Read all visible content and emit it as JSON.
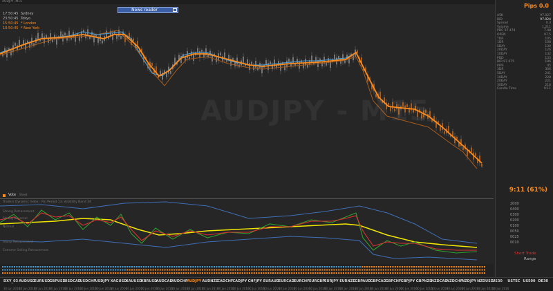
{
  "window": {
    "title": "AUDJPY, M15"
  },
  "news_reader": {
    "label": "News reader"
  },
  "sessions": [
    {
      "time": "17:50:45",
      "name": "Sydney",
      "color": "#bdbdbd"
    },
    {
      "time": "23:50:45",
      "name": "Tokyo",
      "color": "#bdbdbd"
    },
    {
      "time": "15:50:45",
      "name": "* London",
      "color": "#ff8c1a"
    },
    {
      "time": "10:50:45",
      "name": "* New York",
      "color": "#ff8c1a"
    }
  ],
  "watermark": "AUDJPY - M15",
  "stats": {
    "pips": "Pips 0.0",
    "rows": [
      {
        "label": "ASK",
        "value": "97.027"
      },
      {
        "label": "BID",
        "value": "97.024"
      },
      {
        "label": "Spread",
        "value": "0.3"
      },
      {
        "label": "Volume",
        "value": "1,211"
      },
      {
        "label": "PDC 97.474",
        "value": "7.48"
      },
      {
        "label": "OPEN",
        "value": "97.5"
      },
      {
        "label": "TDR",
        "value": "105"
      },
      {
        "label": "1DR",
        "value": "108"
      },
      {
        "label": "5DAY",
        "value": "130"
      },
      {
        "label": "20DAY",
        "value": "126"
      },
      {
        "label": "10DAY",
        "value": "132"
      },
      {
        "label": "PDD",
        "value": "133"
      },
      {
        "label": "BID 97.075",
        "value": "186"
      },
      {
        "label": "PIPS",
        "value": "45"
      },
      {
        "label": "3DR",
        "value": "306"
      },
      {
        "label": "5DAY",
        "value": "241"
      },
      {
        "label": "10DAY",
        "value": "228"
      },
      {
        "label": "20DAY",
        "value": "221"
      },
      {
        "label": "30DAY",
        "value": "218"
      },
      {
        "label": "Candle Time",
        "value": "9:11"
      }
    ]
  },
  "countdown": "9:11 (61%)",
  "vote": {
    "label": "Vote",
    "sub": "Sheet"
  },
  "indicator": {
    "title": "Traders Dynamic Index - Rsi Period 13, Volatility Band 34",
    "zones": [
      "Strong Retracement",
      "Strong Reversal",
      "Normal",
      "Sharp Retracement",
      "Extreme Selling Retracement"
    ],
    "levels": [
      "2000",
      "0400",
      "0300",
      "0200",
      "0100",
      "0050",
      "0025",
      "0010"
    ],
    "short_trade": "Short Trade",
    "range": "Range"
  },
  "tabs": [
    {
      "label": "DXY_03",
      "date": "30 Jun 2016"
    },
    {
      "label": "AUDUSD",
      "date": "30 Jun 2016"
    },
    {
      "label": "EURUSD",
      "date": "30 Jun 2016"
    },
    {
      "label": "GBPUSD",
      "date": "30 Jun 2016"
    },
    {
      "label": "USDCAD",
      "date": "30 Jun 2016"
    },
    {
      "label": "USDCHF",
      "date": "30 Jun 2016"
    },
    {
      "label": "USDJPY",
      "date": "30 Jun 2016"
    },
    {
      "label": "XAGUSD",
      "date": "30 Jun 2016"
    },
    {
      "label": "XAUUSD",
      "date": "30 Jun 2016"
    },
    {
      "label": "XBRUSD",
      "date": "30 Jun 2016"
    },
    {
      "label": "AUDCAD",
      "date": "30 Jun 2016"
    },
    {
      "label": "AUDCHF",
      "date": "30 Jun 2016"
    },
    {
      "label": "AUDJPY",
      "date": "30 Jun 2016",
      "active": true
    },
    {
      "label": "AUDNZD",
      "date": "30 Jun 2016"
    },
    {
      "label": "CADCHF",
      "date": "30 Jun 2016"
    },
    {
      "label": "CADJPY",
      "date": "30 Jun 2016"
    },
    {
      "label": "CHFJPY",
      "date": "30 Jun 2016"
    },
    {
      "label": "EURAUD",
      "date": "30 Jun 2016"
    },
    {
      "label": "EURCAD",
      "date": "30 Jun 2016"
    },
    {
      "label": "EURCHF",
      "date": "30 Jun 2016"
    },
    {
      "label": "EURGBP",
      "date": "30 Jun 2016"
    },
    {
      "label": "EURJPY",
      "date": "30 Jun 2016"
    },
    {
      "label": "EURNZD",
      "date": "30 Jun 2016"
    },
    {
      "label": "GBPAUD",
      "date": "30 Jun 2016"
    },
    {
      "label": "GBPCAD",
      "date": "30 Jun 2016"
    },
    {
      "label": "GBPCHF",
      "date": "30 Jun 2016"
    },
    {
      "label": "GBPJPY",
      "date": "30 Jun 2016"
    },
    {
      "label": "GBPNZD",
      "date": "30 Jun 2016"
    },
    {
      "label": "NZDCAD",
      "date": "30 Jun 2016"
    },
    {
      "label": "NZDCHF",
      "date": "30 Jun 2016"
    },
    {
      "label": "NZDJPY",
      "date": "30 Jun 2016"
    },
    {
      "label": "NZDUSD",
      "date": "30 Jun 2016"
    },
    {
      "label": "US30",
      "date": "30 Jun 2016"
    },
    {
      "label": "USTEC",
      "date": ""
    },
    {
      "label": "US500",
      "date": ""
    },
    {
      "label": "DE30",
      "date": ""
    }
  ],
  "colors": {
    "accent": "#ff8c1a",
    "blue": "#4aa3df",
    "red": "#e03030",
    "green": "#2e9e2e",
    "yellow": "#f2e600",
    "band": "#3f6fb5"
  }
}
